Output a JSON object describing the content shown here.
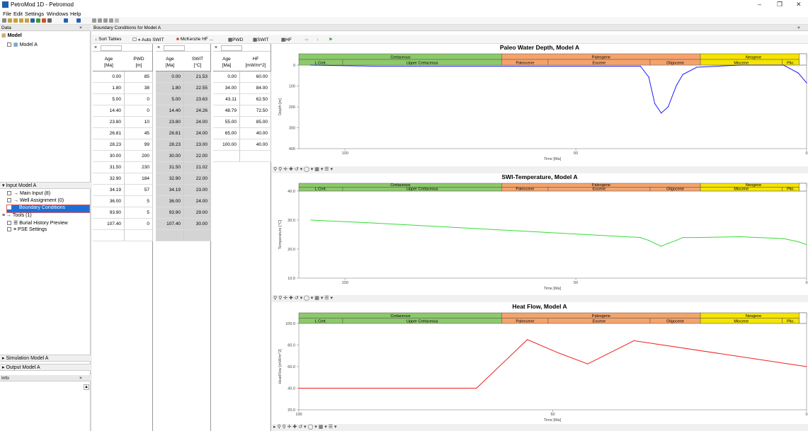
{
  "window": {
    "title": "PetroMod 1D - Petromod"
  },
  "menu": [
    "File",
    "Edit",
    "Settings",
    "Windows",
    "Help"
  ],
  "data_panel": {
    "title": "Data",
    "model_group": "Model",
    "model_item": "Model A"
  },
  "input_panel": {
    "title": "Input Model A",
    "main_input": "Main Input (8)",
    "well_assignment": "Well Assignment (0)",
    "boundary_conditions": "Boundary Conditions",
    "tools": "Tools (1)",
    "burial_history": "Burial History Preview",
    "pse_settings": "PSE Settings"
  },
  "simulation_panel": "Simulation Model A",
  "output_panel": "Output Model A",
  "info_panel": "Info",
  "main_title": "Boundary Conditions for Model A",
  "toolbar": {
    "sort_tables": "Sort Tables",
    "auto_swit": "Auto SWIT",
    "mckenzie": "McKenzie HF ...",
    "pwd": "PWD",
    "swit": "SWIT",
    "hf": "HF"
  },
  "pwd_table": {
    "headers": [
      "Age [Ma]",
      "PWD [m]"
    ],
    "rows": [
      [
        "0.00",
        "85"
      ],
      [
        "1.80",
        "38"
      ],
      [
        "5.00",
        "0"
      ],
      [
        "14.40",
        "0"
      ],
      [
        "23.80",
        "10"
      ],
      [
        "26.81",
        "45"
      ],
      [
        "28.23",
        "99"
      ],
      [
        "30.00",
        "200"
      ],
      [
        "31.50",
        "230"
      ],
      [
        "32.90",
        "184"
      ],
      [
        "34.19",
        "57"
      ],
      [
        "36.00",
        "5"
      ],
      [
        "93.90",
        "5"
      ],
      [
        "107.40",
        "0"
      ]
    ]
  },
  "swit_table": {
    "headers": [
      "Age [Ma]",
      "SWIT [°C]"
    ],
    "rows": [
      [
        "0.00",
        "21.53"
      ],
      [
        "1.80",
        "22.55"
      ],
      [
        "5.00",
        "23.63"
      ],
      [
        "14.40",
        "24.26"
      ],
      [
        "23.80",
        "24.00"
      ],
      [
        "26.81",
        "24.00"
      ],
      [
        "28.23",
        "23.00"
      ],
      [
        "30.00",
        "22.00"
      ],
      [
        "31.50",
        "21.02"
      ],
      [
        "32.90",
        "22.00"
      ],
      [
        "34.19",
        "23.00"
      ],
      [
        "36.00",
        "24.00"
      ],
      [
        "93.90",
        "29.00"
      ],
      [
        "107.40",
        "30.00"
      ]
    ]
  },
  "hf_table": {
    "headers": [
      "Age [Ma]",
      "HF [mW/m^2]"
    ],
    "rows": [
      [
        "0.00",
        "60.00"
      ],
      [
        "34.00",
        "84.00"
      ],
      [
        "43.11",
        "62.50"
      ],
      [
        "48.79",
        "72.50"
      ],
      [
        "55.00",
        "85.00"
      ],
      [
        "65.00",
        "40.00"
      ],
      [
        "100.00",
        "40.00"
      ]
    ]
  },
  "strat": {
    "periods": [
      "Cretaceous",
      "Paleogene",
      "Neogene"
    ],
    "epochs": [
      "L Cret.",
      "Upper Cretaceous",
      "Paleocene",
      "Eocene",
      "Oligocene",
      "Miocene",
      "Plio."
    ]
  },
  "colors": {
    "pwd": "#1a1aff",
    "swit": "#33dd33",
    "hf": "#ee2222",
    "cretaceous": "#8cc96a",
    "paleogene": "#f5a36b",
    "neogene": "#f5e400"
  },
  "chart_data": [
    {
      "type": "line",
      "title": "Paleo Water Depth, Model A",
      "xlabel": "Time [Ma]",
      "ylabel": "Depth [m]",
      "xlim": [
        110,
        0
      ],
      "ylim": [
        400,
        0
      ],
      "x_ticks": [
        "100",
        "50",
        "0"
      ],
      "y_ticks": [
        "0",
        "100",
        "200",
        "300",
        "400"
      ],
      "series": [
        {
          "x": [
            107.4,
            93.9,
            36,
            34.19,
            32.9,
            31.5,
            30,
            28.23,
            26.81,
            23.8,
            14.4,
            5,
            1.8,
            0
          ],
          "y": [
            0,
            5,
            5,
            57,
            184,
            230,
            200,
            99,
            45,
            10,
            0,
            0,
            38,
            85
          ]
        }
      ]
    },
    {
      "type": "line",
      "title": "SWI-Temperature, Model A",
      "xlabel": "Time [Ma]",
      "ylabel": "Temperature [°C]",
      "xlim": [
        110,
        0
      ],
      "ylim": [
        10,
        40
      ],
      "x_ticks": [
        "100",
        "50",
        "0"
      ],
      "y_ticks": [
        "10.0",
        "20.0",
        "30.0",
        "40.0"
      ],
      "series": [
        {
          "x": [
            107.4,
            93.9,
            36,
            34.19,
            32.9,
            31.5,
            30,
            28.23,
            26.81,
            23.8,
            14.4,
            5,
            1.8,
            0
          ],
          "y": [
            30,
            29,
            24,
            23,
            22,
            21.02,
            22,
            23,
            24,
            24,
            24.26,
            23.63,
            22.55,
            21.53
          ]
        }
      ]
    },
    {
      "type": "line",
      "title": "Heat Flow, Model A",
      "xlabel": "Time [Ma]",
      "ylabel": "HeatFlow [mW/m^2]",
      "xlim": [
        100,
        0
      ],
      "ylim": [
        20,
        100
      ],
      "x_ticks": [
        "100",
        "50",
        "0"
      ],
      "y_ticks": [
        "20.0",
        "40.0",
        "60.0",
        "80.0",
        "100.0"
      ],
      "series": [
        {
          "x": [
            100,
            65,
            55,
            48.79,
            43.11,
            34,
            0
          ],
          "y": [
            40,
            40,
            85,
            72.5,
            62.5,
            84,
            60
          ]
        }
      ]
    }
  ]
}
